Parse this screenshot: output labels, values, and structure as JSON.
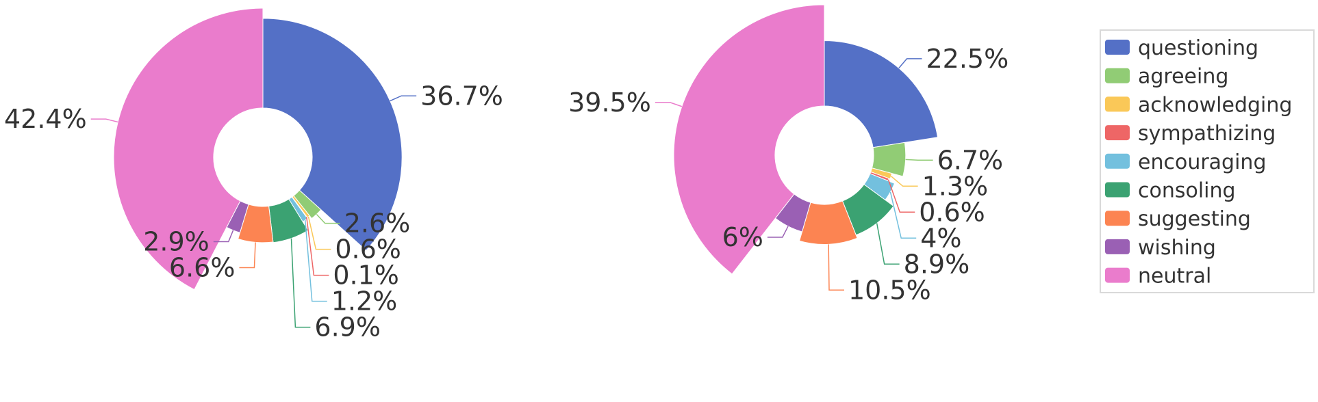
{
  "chart_data": {
    "type": "pie",
    "variant": "rose-donut",
    "legend": {
      "placement": "right",
      "entries": [
        "questioning",
        "agreeing",
        "acknowledging",
        "sympathizing",
        "encouraging",
        "consoling",
        "suggesting",
        "wishing",
        "neutral"
      ]
    },
    "colors": [
      "#5470c6",
      "#91cc75",
      "#fac858",
      "#ee6666",
      "#73c0de",
      "#3ba272",
      "#fc8452",
      "#9a60b4",
      "#ea7ccc"
    ],
    "charts": [
      {
        "categories": [
          "questioning",
          "agreeing",
          "acknowledging",
          "sympathizing",
          "encouraging",
          "consoling",
          "suggesting",
          "wishing",
          "neutral"
        ],
        "values": [
          36.7,
          2.6,
          0.6,
          0.1,
          1.2,
          6.9,
          6.6,
          2.9,
          42.4
        ],
        "labels": [
          "36.7%",
          "2.6%",
          "0.6%",
          "0.1%",
          "1.2%",
          "6.9%",
          "6.6%",
          "2.9%",
          "42.4%"
        ]
      },
      {
        "categories": [
          "questioning",
          "agreeing",
          "acknowledging",
          "sympathizing",
          "encouraging",
          "consoling",
          "suggesting",
          "wishing",
          "neutral"
        ],
        "values": [
          22.5,
          6.7,
          1.3,
          0.6,
          4,
          8.9,
          10.5,
          6,
          39.5
        ],
        "labels": [
          "22.5%",
          "6.7%",
          "1.3%",
          "0.6%",
          "4%",
          "8.9%",
          "10.5%",
          "6%",
          "39.5%"
        ]
      }
    ]
  }
}
